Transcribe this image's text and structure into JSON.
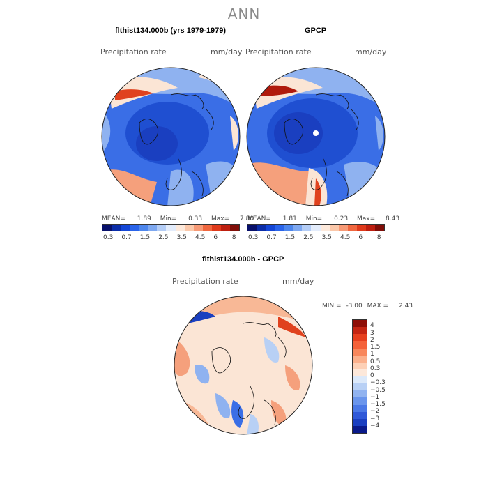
{
  "page": {
    "title": "ANN"
  },
  "panels": [
    {
      "id": "model",
      "title": "flthist134.000b (yrs 1979-1979)",
      "left_label": "Precipitation rate",
      "right_label": "mm/day",
      "stats": {
        "mean_label": "MEAN=",
        "mean": "1.89",
        "min_label": "Min=",
        "min": "0.33",
        "max_label": "Max=",
        "max": "7.80"
      }
    },
    {
      "id": "obs",
      "title": "GPCP",
      "left_label": "Precipitation rate",
      "right_label": "mm/day",
      "stats": {
        "mean_label": "MEAN=",
        "mean": "1.81",
        "min_label": "Min=",
        "min": "0.23",
        "max_label": "Max=",
        "max": "8.43"
      }
    }
  ],
  "abs_colorbar": {
    "colors": [
      "#08106a",
      "#0b2da8",
      "#1446d6",
      "#2a64ea",
      "#4d86ec",
      "#7ea8f0",
      "#b4cdf6",
      "#e3ecfb",
      "#fde9db",
      "#fbc8aa",
      "#f79a76",
      "#f0673f",
      "#df3a1b",
      "#bd1f10",
      "#800e08"
    ],
    "ticks": [
      "0.3",
      "0.7",
      "1.5",
      "2.5",
      "3.5",
      "4.5",
      "6",
      "8"
    ]
  },
  "diff_panel": {
    "title": "flthist134.000b - GPCP",
    "left_label": "Precipitation rate",
    "right_label": "mm/day",
    "stats": {
      "min_label": "MIN =",
      "min": "-3.00",
      "max_label": "MAX =",
      "max": "2.43"
    }
  },
  "diff_colorbar": {
    "colors": [
      "#8e0e07",
      "#c42513",
      "#e6401f",
      "#f4623a",
      "#f8875c",
      "#fbb08c",
      "#fdd0b6",
      "#fde8da",
      "#dce9fa",
      "#b8d0f5",
      "#91b3f0",
      "#6a95ec",
      "#4a78e6",
      "#2f58d8",
      "#1a3fc0",
      "#0a1a8a"
    ],
    "ticks": [
      "4",
      "3",
      "2",
      "1.5",
      "1",
      "0.5",
      "0.3",
      "0",
      "−0.3",
      "−0.5",
      "−1",
      "−1.5",
      "−2",
      "−3",
      "−4"
    ]
  },
  "map_colors": {
    "deep_blue": "#1f4fd1",
    "mid_blue": "#3a6ee6",
    "light_blue": "#8fb2f0",
    "pale": "#fbe5d5",
    "salmon": "#f5a07c",
    "red": "#e0421e",
    "dark_red": "#b01a0c"
  }
}
